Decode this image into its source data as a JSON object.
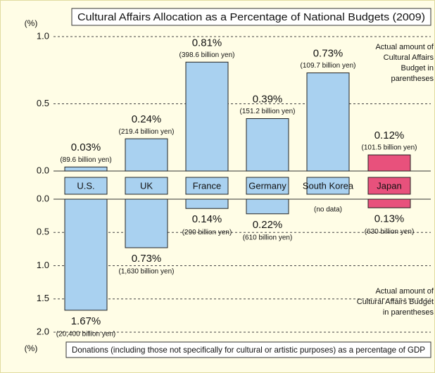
{
  "chart_data": [
    {
      "type": "bar",
      "title": "Cultural Affairs Allocation as a Percentage of National Budgets (2009)",
      "y_label": "(%)",
      "categories": [
        "U.S.",
        "UK",
        "France",
        "Germany",
        "South Korea",
        "Japan"
      ],
      "values": [
        0.03,
        0.24,
        0.81,
        0.39,
        0.73,
        0.12
      ],
      "value_labels": [
        "0.03%",
        "0.24%",
        "0.81%",
        "0.39%",
        "0.73%",
        "0.12%"
      ],
      "amount_labels": [
        "(89.6 billion yen)",
        "(219.4 billion yen)",
        "(398.6 billion yen)",
        "(151.2 billion yen)",
        "(109.7 billion yen)",
        "(101.5 billion yen)"
      ],
      "colors": [
        "#a9d1f0",
        "#a9d1f0",
        "#a9d1f0",
        "#a9d1f0",
        "#a9d1f0",
        "#e8517c"
      ],
      "note": [
        "Actual amount of",
        "Cultural Affairs",
        "Budget in",
        "parentheses"
      ],
      "ylim": [
        0,
        1
      ],
      "yticks": [
        {
          "value": 0,
          "label": "0.0"
        },
        0.5,
        {
          "value": 1,
          "label": "1.0"
        }
      ],
      "grid": true
    },
    {
      "type": "bar",
      "title": "Donations (including those not specifically for cultural or artistic purposes) as a percentage of GDP",
      "y_label": "(%)",
      "values": [
        1.67,
        0.73,
        0.14,
        0.22,
        null,
        0.13
      ],
      "value_labels": [
        "1.67%",
        "0.73%",
        "0.14%",
        "0.22%",
        null,
        "0.13%"
      ],
      "amount_labels": [
        "(20,400 billion yen)",
        "(1,630 billion yen)",
        "(290 billion yen)",
        "(610 billion yen)",
        "(no data)",
        "(630 billion yen)"
      ],
      "colors": [
        "#a9d1f0",
        "#a9d1f0",
        "#a9d1f0",
        "#a9d1f0",
        "#a9d1f0",
        "#e8517c"
      ],
      "note": [
        "Actual amount of",
        "Cultural Affairs Budget",
        "in parentheses"
      ],
      "ylim": [
        0,
        2
      ],
      "yticks": [
        {
          "value": 0,
          "label": "0.0"
        },
        0.5,
        {
          "value": 1,
          "label": "1.0"
        },
        1.5,
        {
          "value": 2,
          "label": "2.0"
        }
      ],
      "grid": true
    }
  ]
}
